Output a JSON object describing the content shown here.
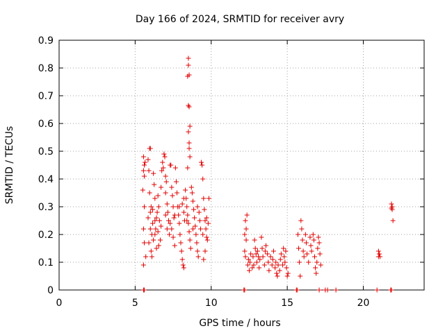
{
  "chart_data": {
    "type": "scatter",
    "title": "Day 166 of 2024, SRMTID for receiver avry",
    "xlabel": "GPS time / hours",
    "ylabel": "SRMTID / TECUs",
    "xlim": [
      0,
      24
    ],
    "ylim": [
      0,
      0.9
    ],
    "x_ticks": [
      0,
      5,
      10,
      15,
      20
    ],
    "y_ticks": [
      0,
      0.1,
      0.2,
      0.3,
      0.4,
      0.5,
      0.6,
      0.7,
      0.8,
      0.9
    ],
    "x_tick_labels": [
      "0",
      "5",
      "10",
      "15",
      "20"
    ],
    "y_tick_labels": [
      "0",
      "0.1",
      "0.2",
      "0.3",
      "0.4",
      "0.5",
      "0.6",
      "0.7",
      "0.8",
      "0.9"
    ],
    "grid": true,
    "marker": "+",
    "series": [
      {
        "name": "SRMTID",
        "color": "#e00000",
        "points": [
          [
            5.55,
            0.0
          ],
          [
            5.6,
            0.0
          ],
          [
            12.15,
            0.0
          ],
          [
            12.2,
            0.0
          ],
          [
            15.6,
            0.0
          ],
          [
            15.65,
            0.0
          ],
          [
            17.1,
            0.0
          ],
          [
            17.5,
            0.0
          ],
          [
            17.65,
            0.0
          ],
          [
            18.2,
            0.0
          ],
          [
            20.9,
            0.0
          ],
          [
            21.8,
            0.0
          ],
          [
            21.85,
            0.0
          ],
          [
            8.5,
            0.835
          ],
          [
            8.5,
            0.81
          ],
          [
            8.45,
            0.77
          ],
          [
            8.55,
            0.775
          ],
          [
            8.5,
            0.665
          ],
          [
            8.55,
            0.66
          ],
          [
            8.6,
            0.59
          ],
          [
            8.5,
            0.57
          ],
          [
            8.55,
            0.53
          ],
          [
            8.55,
            0.51
          ],
          [
            8.6,
            0.48
          ],
          [
            8.45,
            0.44
          ],
          [
            5.55,
            0.48
          ],
          [
            5.6,
            0.45
          ],
          [
            5.55,
            0.43
          ],
          [
            5.65,
            0.46
          ],
          [
            5.6,
            0.41
          ],
          [
            5.5,
            0.36
          ],
          [
            5.6,
            0.3
          ],
          [
            5.55,
            0.22
          ],
          [
            5.6,
            0.17
          ],
          [
            5.55,
            0.09
          ],
          [
            5.7,
            0.12
          ],
          [
            5.85,
            0.47
          ],
          [
            5.95,
            0.51
          ],
          [
            6.0,
            0.51
          ],
          [
            5.9,
            0.43
          ],
          [
            5.95,
            0.35
          ],
          [
            6.05,
            0.3
          ],
          [
            5.85,
            0.26
          ],
          [
            6.0,
            0.22
          ],
          [
            6.1,
            0.2
          ],
          [
            5.9,
            0.17
          ],
          [
            6.05,
            0.14
          ],
          [
            6.1,
            0.12
          ],
          [
            6.2,
            0.42
          ],
          [
            6.25,
            0.38
          ],
          [
            6.3,
            0.33
          ],
          [
            6.15,
            0.29
          ],
          [
            6.3,
            0.25
          ],
          [
            6.35,
            0.22
          ],
          [
            6.2,
            0.18
          ],
          [
            6.4,
            0.15
          ],
          [
            6.3,
            0.2
          ],
          [
            6.45,
            0.28
          ],
          [
            6.5,
            0.34
          ],
          [
            6.55,
            0.3
          ],
          [
            6.6,
            0.25
          ],
          [
            6.5,
            0.21
          ],
          [
            6.65,
            0.18
          ],
          [
            6.55,
            0.16
          ],
          [
            6.7,
            0.37
          ],
          [
            6.75,
            0.43
          ],
          [
            6.8,
            0.46
          ],
          [
            6.85,
            0.44
          ],
          [
            6.9,
            0.49
          ],
          [
            6.95,
            0.48
          ],
          [
            7.0,
            0.41
          ],
          [
            7.05,
            0.39
          ],
          [
            7.0,
            0.35
          ],
          [
            7.1,
            0.31
          ],
          [
            7.15,
            0.28
          ],
          [
            7.2,
            0.25
          ],
          [
            7.1,
            0.22
          ],
          [
            7.25,
            0.2
          ],
          [
            7.3,
            0.45
          ],
          [
            7.35,
            0.45
          ],
          [
            7.4,
            0.37
          ],
          [
            7.45,
            0.34
          ],
          [
            7.5,
            0.3
          ],
          [
            7.55,
            0.26
          ],
          [
            7.4,
            0.22
          ],
          [
            7.5,
            0.19
          ],
          [
            7.6,
            0.16
          ],
          [
            7.65,
            0.44
          ],
          [
            7.7,
            0.39
          ],
          [
            7.75,
            0.35
          ],
          [
            7.8,
            0.3
          ],
          [
            7.85,
            0.27
          ],
          [
            7.9,
            0.24
          ],
          [
            7.95,
            0.2
          ],
          [
            8.0,
            0.17
          ],
          [
            8.05,
            0.14
          ],
          [
            8.1,
            0.11
          ],
          [
            8.15,
            0.09
          ],
          [
            8.2,
            0.08
          ],
          [
            8.1,
            0.31
          ],
          [
            8.2,
            0.28
          ],
          [
            8.25,
            0.25
          ],
          [
            8.3,
            0.36
          ],
          [
            8.35,
            0.33
          ],
          [
            8.4,
            0.3
          ],
          [
            8.45,
            0.27
          ],
          [
            8.5,
            0.24
          ],
          [
            8.55,
            0.21
          ],
          [
            8.6,
            0.18
          ],
          [
            8.65,
            0.15
          ],
          [
            8.7,
            0.37
          ],
          [
            8.75,
            0.35
          ],
          [
            8.8,
            0.32
          ],
          [
            8.85,
            0.29
          ],
          [
            8.9,
            0.26
          ],
          [
            8.95,
            0.23
          ],
          [
            9.0,
            0.2
          ],
          [
            9.05,
            0.17
          ],
          [
            9.1,
            0.14
          ],
          [
            9.15,
            0.12
          ],
          [
            9.2,
            0.28
          ],
          [
            9.25,
            0.25
          ],
          [
            9.3,
            0.22
          ],
          [
            9.35,
            0.46
          ],
          [
            9.4,
            0.45
          ],
          [
            9.45,
            0.4
          ],
          [
            9.5,
            0.33
          ],
          [
            9.55,
            0.29
          ],
          [
            9.6,
            0.25
          ],
          [
            9.65,
            0.22
          ],
          [
            9.7,
            0.19
          ],
          [
            9.75,
            0.18
          ],
          [
            9.8,
            0.24
          ],
          [
            9.85,
            0.33
          ],
          [
            9.7,
            0.26
          ],
          [
            9.6,
            0.14
          ],
          [
            9.5,
            0.11
          ],
          [
            9.45,
            0.2
          ],
          [
            6.0,
            0.28
          ],
          [
            6.15,
            0.24
          ],
          [
            6.4,
            0.26
          ],
          [
            6.7,
            0.23
          ],
          [
            7.0,
            0.27
          ],
          [
            7.3,
            0.24
          ],
          [
            7.6,
            0.27
          ],
          [
            7.9,
            0.3
          ],
          [
            8.2,
            0.33
          ],
          [
            8.4,
            0.25
          ],
          [
            8.8,
            0.22
          ],
          [
            9.1,
            0.3
          ],
          [
            12.2,
            0.2
          ],
          [
            12.25,
            0.25
          ],
          [
            12.3,
            0.22
          ],
          [
            12.35,
            0.27
          ],
          [
            12.3,
            0.18
          ],
          [
            12.2,
            0.14
          ],
          [
            12.25,
            0.12
          ],
          [
            12.4,
            0.09
          ],
          [
            12.45,
            0.11
          ],
          [
            12.5,
            0.07
          ],
          [
            12.55,
            0.1
          ],
          [
            12.6,
            0.13
          ],
          [
            12.7,
            0.08
          ],
          [
            12.75,
            0.12
          ],
          [
            12.8,
            0.09
          ],
          [
            12.85,
            0.18
          ],
          [
            12.9,
            0.15
          ],
          [
            12.95,
            0.13
          ],
          [
            13.0,
            0.1
          ],
          [
            13.05,
            0.14
          ],
          [
            13.1,
            0.12
          ],
          [
            13.15,
            0.08
          ],
          [
            13.2,
            0.11
          ],
          [
            13.3,
            0.19
          ],
          [
            13.35,
            0.15
          ],
          [
            13.4,
            0.12
          ],
          [
            13.5,
            0.09
          ],
          [
            13.55,
            0.14
          ],
          [
            13.6,
            0.16
          ],
          [
            13.7,
            0.13
          ],
          [
            13.75,
            0.1
          ],
          [
            13.8,
            0.07
          ],
          [
            13.9,
            0.12
          ],
          [
            14.0,
            0.09
          ],
          [
            14.05,
            0.11
          ],
          [
            14.1,
            0.14
          ],
          [
            14.2,
            0.08
          ],
          [
            14.25,
            0.1
          ],
          [
            14.3,
            0.06
          ],
          [
            14.35,
            0.05
          ],
          [
            14.4,
            0.09
          ],
          [
            14.5,
            0.07
          ],
          [
            14.55,
            0.11
          ],
          [
            14.6,
            0.13
          ],
          [
            14.7,
            0.09
          ],
          [
            14.75,
            0.15
          ],
          [
            14.8,
            0.12
          ],
          [
            14.85,
            0.1
          ],
          [
            14.9,
            0.14
          ],
          [
            14.95,
            0.08
          ],
          [
            15.0,
            0.05
          ],
          [
            15.05,
            0.06
          ],
          [
            15.7,
            0.2
          ],
          [
            15.75,
            0.15
          ],
          [
            15.8,
            0.1
          ],
          [
            15.85,
            0.05
          ],
          [
            15.9,
            0.25
          ],
          [
            15.95,
            0.22
          ],
          [
            16.0,
            0.18
          ],
          [
            16.05,
            0.14
          ],
          [
            16.1,
            0.12
          ],
          [
            16.2,
            0.2
          ],
          [
            16.25,
            0.17
          ],
          [
            16.3,
            0.13
          ],
          [
            16.4,
            0.1
          ],
          [
            16.5,
            0.19
          ],
          [
            16.55,
            0.16
          ],
          [
            16.6,
            0.14
          ],
          [
            16.7,
            0.2
          ],
          [
            16.75,
            0.18
          ],
          [
            16.8,
            0.12
          ],
          [
            16.85,
            0.08
          ],
          [
            16.9,
            0.06
          ],
          [
            16.95,
            0.1
          ],
          [
            17.0,
            0.15
          ],
          [
            17.05,
            0.19
          ],
          [
            17.1,
            0.17
          ],
          [
            17.15,
            0.13
          ],
          [
            17.2,
            0.09
          ],
          [
            21.0,
            0.14
          ],
          [
            21.05,
            0.13
          ],
          [
            21.0,
            0.12
          ],
          [
            21.1,
            0.12
          ],
          [
            21.85,
            0.31
          ],
          [
            21.9,
            0.3
          ],
          [
            21.85,
            0.295
          ],
          [
            21.9,
            0.29
          ],
          [
            21.95,
            0.25
          ]
        ]
      }
    ]
  }
}
